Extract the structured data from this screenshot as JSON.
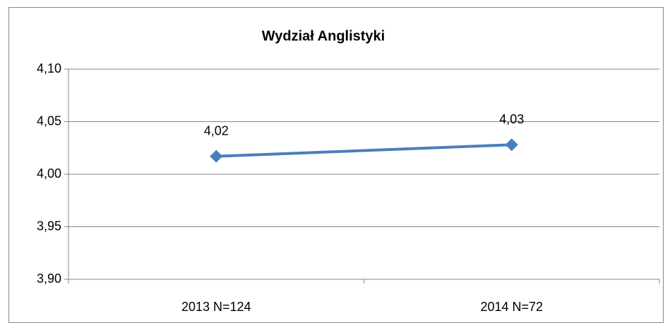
{
  "chart_data": {
    "type": "line",
    "title": "Wydział Anglistyki",
    "categories": [
      "2013 N=124",
      "2014 N=72"
    ],
    "series": [
      {
        "color": "#4a7ebb",
        "values": [
          4.017,
          4.028
        ],
        "value_labels": [
          "4,02",
          "4,03"
        ]
      }
    ],
    "ylim": [
      3.9,
      4.1
    ],
    "yticks": [
      {
        "value": 3.9,
        "label": "3,90"
      },
      {
        "value": 3.95,
        "label": "3,95"
      },
      {
        "value": 4.0,
        "label": "4,00"
      },
      {
        "value": 4.05,
        "label": "4,05"
      },
      {
        "value": 4.1,
        "label": "4,10"
      }
    ],
    "grid": true
  }
}
